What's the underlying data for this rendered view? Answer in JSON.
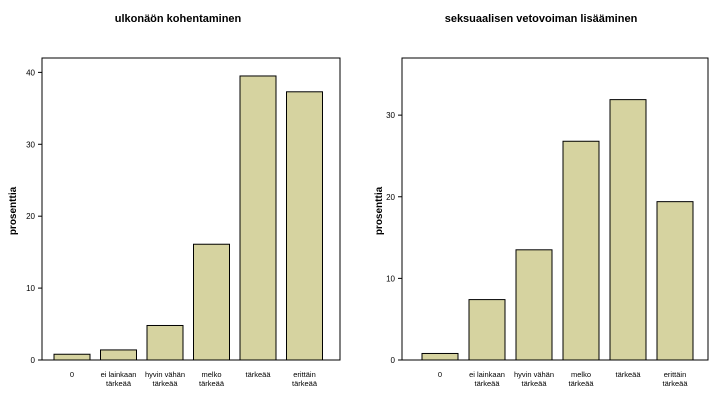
{
  "chart_data": [
    {
      "type": "bar",
      "title": "ulkonäön kohentaminen",
      "ylabel": "prosenttia",
      "xlabel": "",
      "categories": [
        "0",
        "ei lainkaan tärkeää",
        "hyvin vähän tärkeää",
        "melko tärkeää",
        "tärkeää",
        "erittäin tärkeää"
      ],
      "category_lines": [
        [
          "0"
        ],
        [
          "ei lainkaan",
          "tärkeää"
        ],
        [
          "hyvin vähän",
          "tärkeää"
        ],
        [
          "melko",
          "tärkeää"
        ],
        [
          "tärkeää"
        ],
        [
          "erittäin",
          "tärkeää"
        ]
      ],
      "values": [
        0.8,
        1.4,
        4.8,
        16.1,
        39.5,
        37.3
      ],
      "ylim": [
        0,
        42
      ],
      "yticks": [
        0,
        10,
        20,
        30,
        40
      ],
      "bar_color": "#d6d3a0",
      "grid": false
    },
    {
      "type": "bar",
      "title": "seksuaalisen vetovoiman lisääminen",
      "ylabel": "prosenttia",
      "xlabel": "",
      "categories": [
        "0",
        "ei lainkaan tärkeää",
        "hyvin vähän tärkeää",
        "melko tärkeää",
        "tärkeää",
        "erittäin tärkeää"
      ],
      "category_lines": [
        [
          "0"
        ],
        [
          "ei lainkaan",
          "tärkeää"
        ],
        [
          "hyvin vähän",
          "tärkeää"
        ],
        [
          "melko",
          "tärkeää"
        ],
        [
          "tärkeää"
        ],
        [
          "erittäin",
          "tärkeää"
        ]
      ],
      "values": [
        0.8,
        7.4,
        13.5,
        26.8,
        31.9,
        19.4
      ],
      "ylim": [
        0,
        37
      ],
      "yticks": [
        0,
        10,
        20,
        30
      ],
      "bar_color": "#d6d3a0",
      "grid": false
    }
  ]
}
